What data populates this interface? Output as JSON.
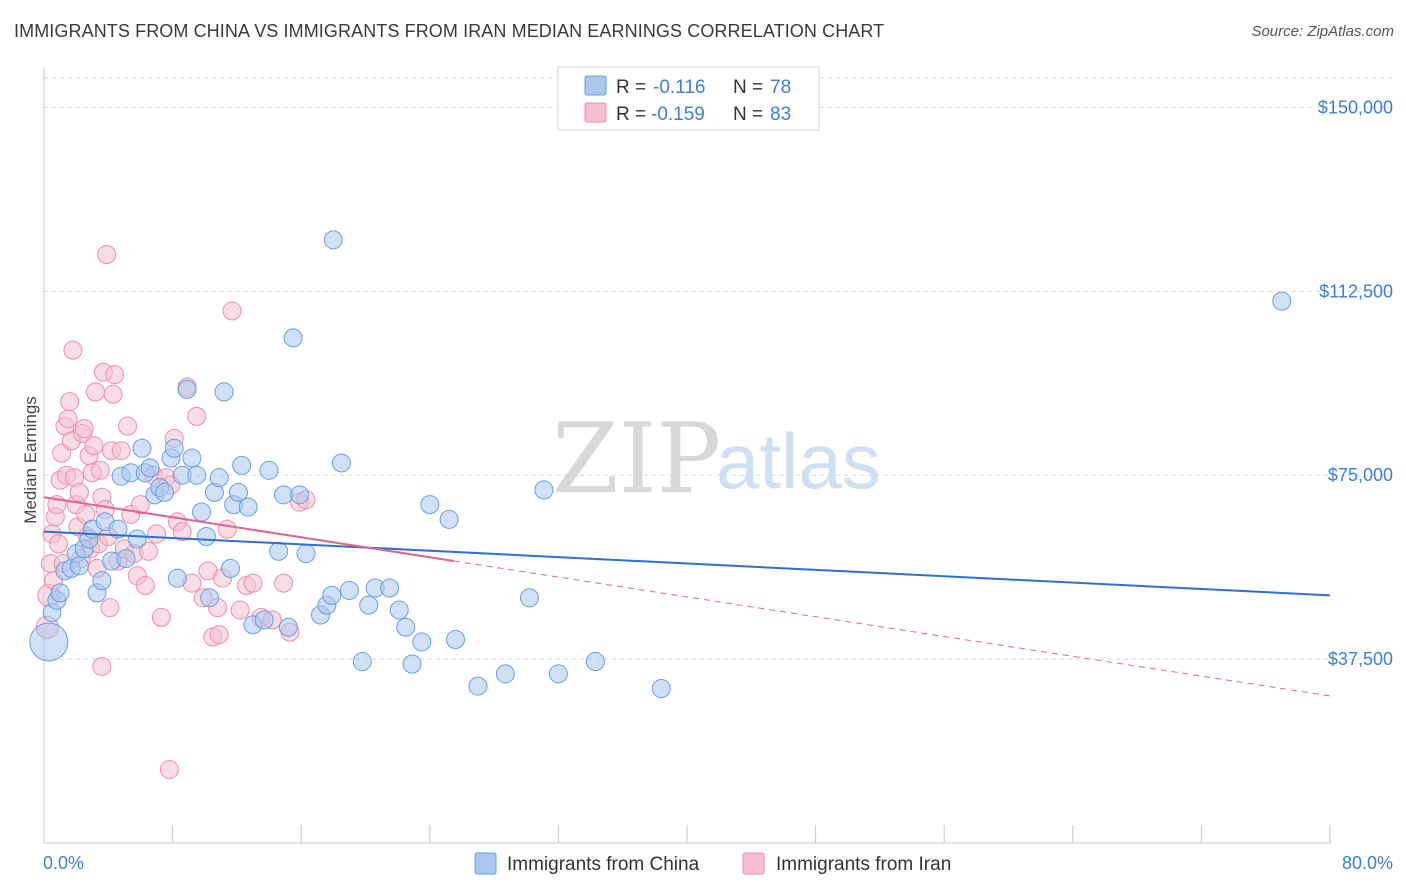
{
  "header": {
    "title": "IMMIGRANTS FROM CHINA VS IMMIGRANTS FROM IRAN MEDIAN EARNINGS CORRELATION CHART",
    "source": "Source: ZipAtlas.com"
  },
  "watermark": {
    "zip": "ZIP",
    "atlas": "atlas"
  },
  "legend": {
    "china": {
      "r_label": "R =",
      "r_value": "-0.116",
      "n_label": "N =",
      "n_value": "78"
    },
    "iran": {
      "r_label": "R =",
      "r_value": "-0.159",
      "n_label": "N =",
      "n_value": "83"
    }
  },
  "colors": {
    "china_fill": "#a9c8f0",
    "china_stroke": "#6a9fe0",
    "china_line": "#2f6fcf",
    "iran_fill": "#f6bfd0",
    "iran_stroke": "#ec8eab",
    "iran_line": "#e0668e",
    "tick_text": "#3f7fd1",
    "grid": "#d9d9d9"
  },
  "chart_data": {
    "type": "scatter",
    "title": "IMMIGRANTS FROM CHINA VS IMMIGRANTS FROM IRAN MEDIAN EARNINGS CORRELATION CHART",
    "ylabel": "Median Earnings",
    "xlabel": "",
    "xlim": [
      0,
      80
    ],
    "ylim": [
      0,
      156000
    ],
    "x_tick_labels": [
      "0.0%",
      "80.0%"
    ],
    "y_ticks": [
      37500,
      75000,
      112500,
      150000
    ],
    "y_tick_labels": [
      "$37,500",
      "$75,000",
      "$112,500",
      "$150,000"
    ],
    "grid": "horizontal dashed",
    "legend_position": "top-center",
    "series": [
      {
        "name": "Immigrants from China",
        "r": -0.116,
        "n": 78,
        "trend": {
          "x": [
            0,
            80
          ],
          "y": [
            63500,
            50500
          ]
        },
        "points": [
          [
            0.3,
            41000
          ],
          [
            0.5,
            47000
          ],
          [
            0.8,
            49500
          ],
          [
            1.0,
            51000
          ],
          [
            1.3,
            55500
          ],
          [
            1.7,
            56000
          ],
          [
            2.0,
            59000
          ],
          [
            2.2,
            56500
          ],
          [
            2.5,
            60000
          ],
          [
            2.8,
            62000
          ],
          [
            3.0,
            64000
          ],
          [
            3.3,
            51000
          ],
          [
            3.6,
            53500
          ],
          [
            3.8,
            65500
          ],
          [
            4.2,
            57500
          ],
          [
            4.6,
            64000
          ],
          [
            4.8,
            74800
          ],
          [
            5.1,
            58000
          ],
          [
            5.4,
            75500
          ],
          [
            5.8,
            62000
          ],
          [
            6.1,
            80500
          ],
          [
            6.3,
            75500
          ],
          [
            6.6,
            76500
          ],
          [
            6.9,
            71000
          ],
          [
            7.2,
            72500
          ],
          [
            7.5,
            71500
          ],
          [
            7.9,
            78500
          ],
          [
            8.1,
            80500
          ],
          [
            8.3,
            54000
          ],
          [
            8.6,
            75000
          ],
          [
            8.9,
            92500
          ],
          [
            9.2,
            78500
          ],
          [
            9.5,
            75000
          ],
          [
            9.8,
            67500
          ],
          [
            10.1,
            62500
          ],
          [
            10.3,
            50000
          ],
          [
            10.6,
            71500
          ],
          [
            10.9,
            74500
          ],
          [
            11.2,
            92000
          ],
          [
            11.6,
            56000
          ],
          [
            11.8,
            69000
          ],
          [
            12.1,
            71500
          ],
          [
            12.3,
            77000
          ],
          [
            12.7,
            68500
          ],
          [
            13.0,
            44500
          ],
          [
            13.7,
            45500
          ],
          [
            14.0,
            76000
          ],
          [
            14.6,
            59500
          ],
          [
            14.9,
            71000
          ],
          [
            15.2,
            44000
          ],
          [
            15.5,
            103000
          ],
          [
            15.9,
            71000
          ],
          [
            16.3,
            59000
          ],
          [
            17.2,
            46500
          ],
          [
            17.6,
            48500
          ],
          [
            17.9,
            50500
          ],
          [
            18.0,
            123000
          ],
          [
            18.5,
            77500
          ],
          [
            19.0,
            51500
          ],
          [
            19.8,
            37000
          ],
          [
            20.2,
            48500
          ],
          [
            20.6,
            52000
          ],
          [
            21.5,
            52000
          ],
          [
            22.1,
            47500
          ],
          [
            22.5,
            44000
          ],
          [
            22.9,
            36500
          ],
          [
            23.5,
            41000
          ],
          [
            24.0,
            69000
          ],
          [
            25.2,
            66000
          ],
          [
            25.6,
            41500
          ],
          [
            27.0,
            32000
          ],
          [
            28.7,
            34500
          ],
          [
            30.2,
            50000
          ],
          [
            31.1,
            72000
          ],
          [
            32.0,
            34500
          ],
          [
            34.3,
            37000
          ],
          [
            38.4,
            31500
          ],
          [
            77.0,
            110500
          ]
        ]
      },
      {
        "name": "Immigrants from Iran",
        "r": -0.159,
        "n": 83,
        "trend": {
          "x": [
            0,
            25.5
          ],
          "y": [
            70500,
            57500
          ]
        },
        "trend_dashed": {
          "x": [
            25.5,
            80
          ],
          "y": [
            57500,
            30000
          ]
        },
        "points": [
          [
            0.2,
            44000
          ],
          [
            0.3,
            50500
          ],
          [
            0.4,
            57000
          ],
          [
            0.5,
            63000
          ],
          [
            0.6,
            53500
          ],
          [
            0.7,
            66500
          ],
          [
            0.8,
            69000
          ],
          [
            0.9,
            61000
          ],
          [
            1.0,
            74000
          ],
          [
            1.1,
            79500
          ],
          [
            1.2,
            57000
          ],
          [
            1.3,
            85000
          ],
          [
            1.4,
            75000
          ],
          [
            1.5,
            86500
          ],
          [
            1.6,
            90000
          ],
          [
            1.7,
            82000
          ],
          [
            1.8,
            100500
          ],
          [
            1.9,
            74500
          ],
          [
            2.0,
            69000
          ],
          [
            2.1,
            64500
          ],
          [
            2.2,
            71500
          ],
          [
            2.3,
            58000
          ],
          [
            2.4,
            83500
          ],
          [
            2.5,
            84500
          ],
          [
            2.6,
            67000
          ],
          [
            2.7,
            62500
          ],
          [
            2.8,
            79000
          ],
          [
            2.9,
            60000
          ],
          [
            3.0,
            75500
          ],
          [
            3.1,
            81000
          ],
          [
            3.2,
            92000
          ],
          [
            3.3,
            56000
          ],
          [
            3.4,
            61000
          ],
          [
            3.5,
            76000
          ],
          [
            3.6,
            70500
          ],
          [
            3.7,
            96000
          ],
          [
            3.8,
            68000
          ],
          [
            3.9,
            120000
          ],
          [
            4.0,
            62500
          ],
          [
            4.1,
            48000
          ],
          [
            4.2,
            80000
          ],
          [
            4.3,
            91500
          ],
          [
            4.4,
            95500
          ],
          [
            4.6,
            57500
          ],
          [
            4.8,
            80000
          ],
          [
            5.0,
            60000
          ],
          [
            5.2,
            85000
          ],
          [
            5.4,
            67000
          ],
          [
            5.6,
            59000
          ],
          [
            5.8,
            54500
          ],
          [
            6.0,
            69000
          ],
          [
            6.3,
            52500
          ],
          [
            6.5,
            59500
          ],
          [
            6.8,
            75000
          ],
          [
            7.0,
            63000
          ],
          [
            7.3,
            46000
          ],
          [
            7.6,
            74500
          ],
          [
            7.9,
            73000
          ],
          [
            8.1,
            82500
          ],
          [
            8.3,
            65500
          ],
          [
            8.6,
            63500
          ],
          [
            8.9,
            93000
          ],
          [
            9.2,
            53000
          ],
          [
            9.5,
            87000
          ],
          [
            9.9,
            50000
          ],
          [
            10.2,
            55500
          ],
          [
            10.5,
            42000
          ],
          [
            10.8,
            48000
          ],
          [
            11.1,
            54000
          ],
          [
            11.4,
            64000
          ],
          [
            11.7,
            108500
          ],
          [
            12.2,
            47500
          ],
          [
            12.6,
            52500
          ],
          [
            13.0,
            53000
          ],
          [
            13.5,
            46000
          ],
          [
            14.2,
            45500
          ],
          [
            14.9,
            53000
          ],
          [
            15.3,
            43000
          ],
          [
            15.9,
            69500
          ],
          [
            16.3,
            70000
          ],
          [
            3.6,
            36000
          ],
          [
            7.8,
            15000
          ],
          [
            10.9,
            42500
          ]
        ]
      }
    ]
  },
  "bottom_legend": {
    "china": "Immigrants from China",
    "iran": "Immigrants from Iran"
  }
}
